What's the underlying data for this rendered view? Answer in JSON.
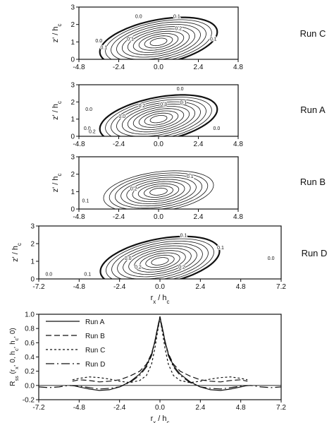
{
  "chart_data": [
    {
      "type": "contour",
      "run_label": "Run C",
      "xlim": [
        -4.8,
        4.8
      ],
      "ylim": [
        0,
        3
      ],
      "xticks": [
        "-4.8",
        "-2.4",
        "0.0",
        "2.4",
        "4.8"
      ],
      "yticks": [
        "0",
        "1",
        "2",
        "3"
      ],
      "ylabel": "z' / h",
      "ylabel_sub": "c",
      "levels": [
        0.0,
        0.1,
        0.2,
        0.3,
        0.4,
        0.5,
        0.6,
        0.7,
        0.8,
        0.9
      ],
      "peak": [
        0.0,
        1.0
      ],
      "tilt": 0.45,
      "contour_labels": [
        {
          "x": 1.1,
          "y": 2.5,
          "text": "0.1"
        },
        {
          "x": 1.2,
          "y": 1.8,
          "text": "0.2"
        },
        {
          "x": -1.7,
          "y": 1.2,
          "text": "0.1"
        },
        {
          "x": -3.6,
          "y": 1.1,
          "text": "0.0"
        },
        {
          "x": -3.3,
          "y": 0.7,
          "text": "0.1"
        },
        {
          "x": 3.3,
          "y": 1.2,
          "text": "0.1"
        },
        {
          "x": -1.2,
          "y": 2.5,
          "text": "0.0"
        }
      ]
    },
    {
      "type": "contour",
      "run_label": "Run A",
      "xlim": [
        -4.8,
        4.8
      ],
      "ylim": [
        0,
        3
      ],
      "xticks": [
        "-4.8",
        "-2.4",
        "0.0",
        "2.4",
        "4.8"
      ],
      "yticks": [
        "0",
        "1",
        "2",
        "3"
      ],
      "ylabel": "z' / h",
      "ylabel_sub": "c",
      "levels": [
        0.0,
        0.1,
        0.2,
        0.3,
        0.4,
        0.5,
        0.6,
        0.7,
        0.8,
        0.9
      ],
      "peak": [
        0.0,
        1.0
      ],
      "tilt": 0.45,
      "contour_labels": [
        {
          "x": 1.3,
          "y": 2.8,
          "text": "0.0"
        },
        {
          "x": 1.5,
          "y": 2.0,
          "text": "0.1"
        },
        {
          "x": 0.3,
          "y": 1.9,
          "text": "0.3"
        },
        {
          "x": -1.0,
          "y": 1.8,
          "text": "0.2"
        },
        {
          "x": -2.2,
          "y": 1.2,
          "text": "0.0"
        },
        {
          "x": -4.3,
          "y": 0.5,
          "text": "0.0"
        },
        {
          "x": -4.0,
          "y": 0.3,
          "text": "0.2"
        },
        {
          "x": 3.5,
          "y": 0.5,
          "text": "0.0"
        },
        {
          "x": -4.2,
          "y": 1.6,
          "text": "0.0"
        }
      ]
    },
    {
      "type": "contour",
      "run_label": "Run B",
      "xlim": [
        -4.8,
        4.8
      ],
      "ylim": [
        0,
        3
      ],
      "xticks": [
        "-4.8",
        "-2.4",
        "0.0",
        "2.4",
        "4.8"
      ],
      "yticks": [
        "0",
        "1",
        "2",
        "3"
      ],
      "ylabel": "z' / h",
      "ylabel_sub": "c",
      "levels": [
        0.1,
        0.2,
        0.3,
        0.4,
        0.5,
        0.6,
        0.7,
        0.8,
        0.9
      ],
      "peak": [
        0.0,
        1.0
      ],
      "tilt": 0.3,
      "contour_labels": [
        {
          "x": 1.9,
          "y": 1.9,
          "text": "0.1"
        },
        {
          "x": -1.5,
          "y": 1.2,
          "text": "0.2"
        },
        {
          "x": -4.4,
          "y": 0.5,
          "text": "0.1"
        }
      ]
    },
    {
      "type": "contour",
      "run_label": "Run D",
      "xlim": [
        -7.2,
        7.2
      ],
      "ylim": [
        0,
        3
      ],
      "xticks": [
        "-7.2",
        "-4.8",
        "-2.4",
        "0.0",
        "2.4",
        "4.8",
        "7.2"
      ],
      "yticks": [
        "0",
        "1",
        "2",
        "3"
      ],
      "ylabel": "z' / h",
      "ylabel_sub": "c",
      "xlabel": "r",
      "xlabel_sub": "x",
      "xlabel_tail": " / h",
      "xlabel_sub2": "c",
      "levels": [
        0.0,
        0.1,
        0.2,
        0.3,
        0.4,
        0.5,
        0.6,
        0.7,
        0.8,
        0.9
      ],
      "peak": [
        0.0,
        1.0
      ],
      "tilt": 0.45,
      "contour_labels": [
        {
          "x": 1.4,
          "y": 2.5,
          "text": "0.1"
        },
        {
          "x": 3.6,
          "y": 1.8,
          "text": "0.1"
        },
        {
          "x": 6.6,
          "y": 1.2,
          "text": "0.0"
        },
        {
          "x": -1.9,
          "y": 1.2,
          "text": "0.0"
        },
        {
          "x": -4.3,
          "y": 0.3,
          "text": "0.1"
        },
        {
          "x": -6.6,
          "y": 0.3,
          "text": "0.0"
        },
        {
          "x": -1.3,
          "y": 0.7,
          "text": "0.2"
        },
        {
          "x": 1.3,
          "y": 0.7,
          "text": "0.2"
        }
      ]
    },
    {
      "type": "line",
      "xlim": [
        -7.2,
        7.2
      ],
      "ylim": [
        -0.2,
        1.0
      ],
      "xticks": [
        "-7.2",
        "-4.8",
        "-2.4",
        "0.0",
        "2.4",
        "4.8",
        "7.2"
      ],
      "yticks": [
        "1.0",
        "0.8",
        "0.6",
        "0.4",
        "0.2",
        "0.0",
        "-0.2"
      ],
      "xlabel": "r",
      "xlabel_sub": "x",
      "xlabel_tail": " / h",
      "xlabel_sub2": "c",
      "ylabel": "R",
      "ylabel_sub": "ss",
      "ylabel_tail": " (r",
      "ylabel_sub2": "x",
      "ylabel_tail2": ", 0, h",
      "ylabel_sub3": "c",
      "ylabel_tail3": ", h",
      "ylabel_sub4": "c",
      "ylabel_tail4": ", 0)",
      "series": [
        {
          "name": "Run A",
          "dash": "none",
          "x": [
            -5.2,
            -4.8,
            -4.2,
            -3.6,
            -3.0,
            -2.4,
            -1.8,
            -1.2,
            -0.8,
            -0.5,
            -0.3,
            -0.15,
            0.0,
            0.15,
            0.3,
            0.5,
            0.8,
            1.2,
            1.8,
            2.4,
            3.0,
            3.6,
            4.2,
            4.8,
            5.2
          ],
          "y": [
            0.0,
            -0.02,
            -0.05,
            -0.07,
            -0.06,
            -0.02,
            0.05,
            0.16,
            0.28,
            0.44,
            0.62,
            0.8,
            0.96,
            0.8,
            0.62,
            0.44,
            0.28,
            0.16,
            0.05,
            -0.02,
            -0.06,
            -0.07,
            -0.05,
            -0.02,
            0.0
          ]
        },
        {
          "name": "Run B",
          "dash": "8 4",
          "x": [
            -5.2,
            -4.8,
            -4.2,
            -3.6,
            -3.0,
            -2.4,
            -1.8,
            -1.2,
            -0.8,
            -0.5,
            -0.3,
            -0.15,
            0.0,
            0.15,
            0.3,
            0.5,
            0.8,
            1.2,
            1.8,
            2.4,
            3.0,
            3.6,
            4.2,
            4.8,
            5.2
          ],
          "y": [
            0.06,
            0.08,
            0.07,
            0.05,
            0.06,
            0.08,
            0.13,
            0.2,
            0.3,
            0.45,
            0.62,
            0.8,
            0.97,
            0.8,
            0.62,
            0.45,
            0.3,
            0.2,
            0.13,
            0.08,
            0.06,
            0.05,
            0.07,
            0.08,
            0.06
          ]
        },
        {
          "name": "Run C",
          "dash": "3 3",
          "x": [
            -5.2,
            -4.8,
            -4.2,
            -3.6,
            -3.0,
            -2.4,
            -1.8,
            -1.2,
            -0.8,
            -0.5,
            -0.3,
            -0.15,
            0.0,
            0.15,
            0.3,
            0.5,
            0.8,
            1.2,
            1.8,
            2.4,
            3.0,
            3.6,
            4.2,
            4.8,
            5.2
          ],
          "y": [
            0.08,
            0.1,
            0.12,
            0.11,
            0.09,
            0.06,
            0.04,
            0.07,
            0.14,
            0.3,
            0.52,
            0.74,
            0.95,
            0.74,
            0.52,
            0.3,
            0.14,
            0.07,
            0.04,
            0.06,
            0.09,
            0.11,
            0.12,
            0.1,
            0.08
          ]
        },
        {
          "name": "Run D",
          "dash": "12 4 2 4",
          "x": [
            -7.2,
            -6.6,
            -6.0,
            -5.4,
            -4.8,
            -4.2,
            -3.6,
            -3.0,
            -2.4,
            -1.8,
            -1.2,
            -0.8,
            -0.5,
            -0.3,
            -0.15,
            0.0,
            0.15,
            0.3,
            0.5,
            0.8,
            1.2,
            1.8,
            2.4,
            3.0,
            3.6,
            4.2,
            4.8,
            5.4,
            6.0,
            6.6,
            7.2
          ],
          "y": [
            -0.02,
            -0.03,
            -0.02,
            0.0,
            -0.01,
            -0.03,
            -0.05,
            -0.04,
            -0.02,
            0.04,
            0.14,
            0.26,
            0.42,
            0.6,
            0.78,
            0.94,
            0.78,
            0.6,
            0.42,
            0.26,
            0.14,
            0.04,
            -0.02,
            -0.04,
            -0.05,
            -0.03,
            -0.01,
            0.0,
            -0.02,
            -0.03,
            -0.02
          ]
        }
      ],
      "legend": "top-left"
    }
  ]
}
